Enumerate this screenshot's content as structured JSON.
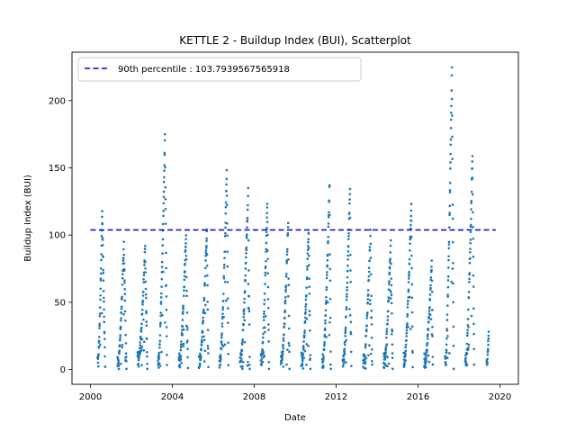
{
  "chart_data": {
    "type": "scatter",
    "title": "KETTLE 2 - Buildup Index (BUI), Scatterplot",
    "xlabel": "Date",
    "ylabel": "Buildup Index (BUI)",
    "xlim": [
      1999.1,
      2001.0
    ],
    "xlim_years": [
      1999.1,
      2020.9
    ],
    "ylim": [
      -11,
      236
    ],
    "x_ticks": [
      2000,
      2004,
      2008,
      2012,
      2016,
      2020
    ],
    "x_tick_labels": [
      "2000",
      "2004",
      "2008",
      "2012",
      "2016",
      "2020"
    ],
    "y_ticks": [
      0,
      50,
      100,
      150,
      200
    ],
    "y_tick_labels": [
      "0",
      "50",
      "100",
      "150",
      "200"
    ],
    "point_color": "#1f77b4",
    "reference_line": {
      "label": "90th percentile : 103.7939567565918",
      "value": 103.7939567565918,
      "x_range": [
        2000.0,
        2019.8
      ],
      "color": "#0000cc",
      "style": "dashed"
    },
    "legend": {
      "placement": "top-left"
    },
    "seasons": [
      {
        "year": 2000,
        "start": 2000.35,
        "end": 2000.72,
        "peak": 122,
        "peak_at": 0.62
      },
      {
        "year": 2001,
        "start": 2001.32,
        "end": 2001.76,
        "peak": 95,
        "peak_at": 0.72
      },
      {
        "year": 2002,
        "start": 2002.3,
        "end": 2002.78,
        "peak": 92,
        "peak_at": 0.78
      },
      {
        "year": 2003,
        "start": 2003.3,
        "end": 2003.74,
        "peak": 177,
        "peak_at": 0.78
      },
      {
        "year": 2004,
        "start": 2004.32,
        "end": 2004.76,
        "peak": 102,
        "peak_at": 0.8
      },
      {
        "year": 2005,
        "start": 2005.3,
        "end": 2005.76,
        "peak": 104,
        "peak_at": 0.85
      },
      {
        "year": 2006,
        "start": 2006.3,
        "end": 2006.74,
        "peak": 149,
        "peak_at": 0.82
      },
      {
        "year": 2007,
        "start": 2007.3,
        "end": 2007.78,
        "peak": 135,
        "peak_at": 0.85
      },
      {
        "year": 2008,
        "start": 2008.32,
        "end": 2008.72,
        "peak": 124,
        "peak_at": 0.8
      },
      {
        "year": 2009,
        "start": 2009.3,
        "end": 2009.72,
        "peak": 109,
        "peak_at": 0.85
      },
      {
        "year": 2010,
        "start": 2010.3,
        "end": 2010.74,
        "peak": 104,
        "peak_at": 0.82
      },
      {
        "year": 2011,
        "start": 2011.32,
        "end": 2011.74,
        "peak": 137,
        "peak_at": 0.85
      },
      {
        "year": 2012,
        "start": 2012.32,
        "end": 2012.74,
        "peak": 136,
        "peak_at": 0.85
      },
      {
        "year": 2013,
        "start": 2013.32,
        "end": 2013.76,
        "peak": 104,
        "peak_at": 0.82
      },
      {
        "year": 2014,
        "start": 2014.32,
        "end": 2014.76,
        "peak": 97,
        "peak_at": 0.8
      },
      {
        "year": 2015,
        "start": 2015.3,
        "end": 2015.74,
        "peak": 124,
        "peak_at": 0.85
      },
      {
        "year": 2016,
        "start": 2016.3,
        "end": 2016.72,
        "peak": 81,
        "peak_at": 0.9
      },
      {
        "year": 2017,
        "start": 2017.32,
        "end": 2017.74,
        "peak": 227,
        "peak_at": 0.8
      },
      {
        "year": 2018,
        "start": 2018.3,
        "end": 2018.74,
        "peak": 163,
        "peak_at": 0.82
      },
      {
        "year": 2019,
        "start": 2019.35,
        "end": 2019.45,
        "peak": 29,
        "peak_at": 1.0
      }
    ]
  }
}
